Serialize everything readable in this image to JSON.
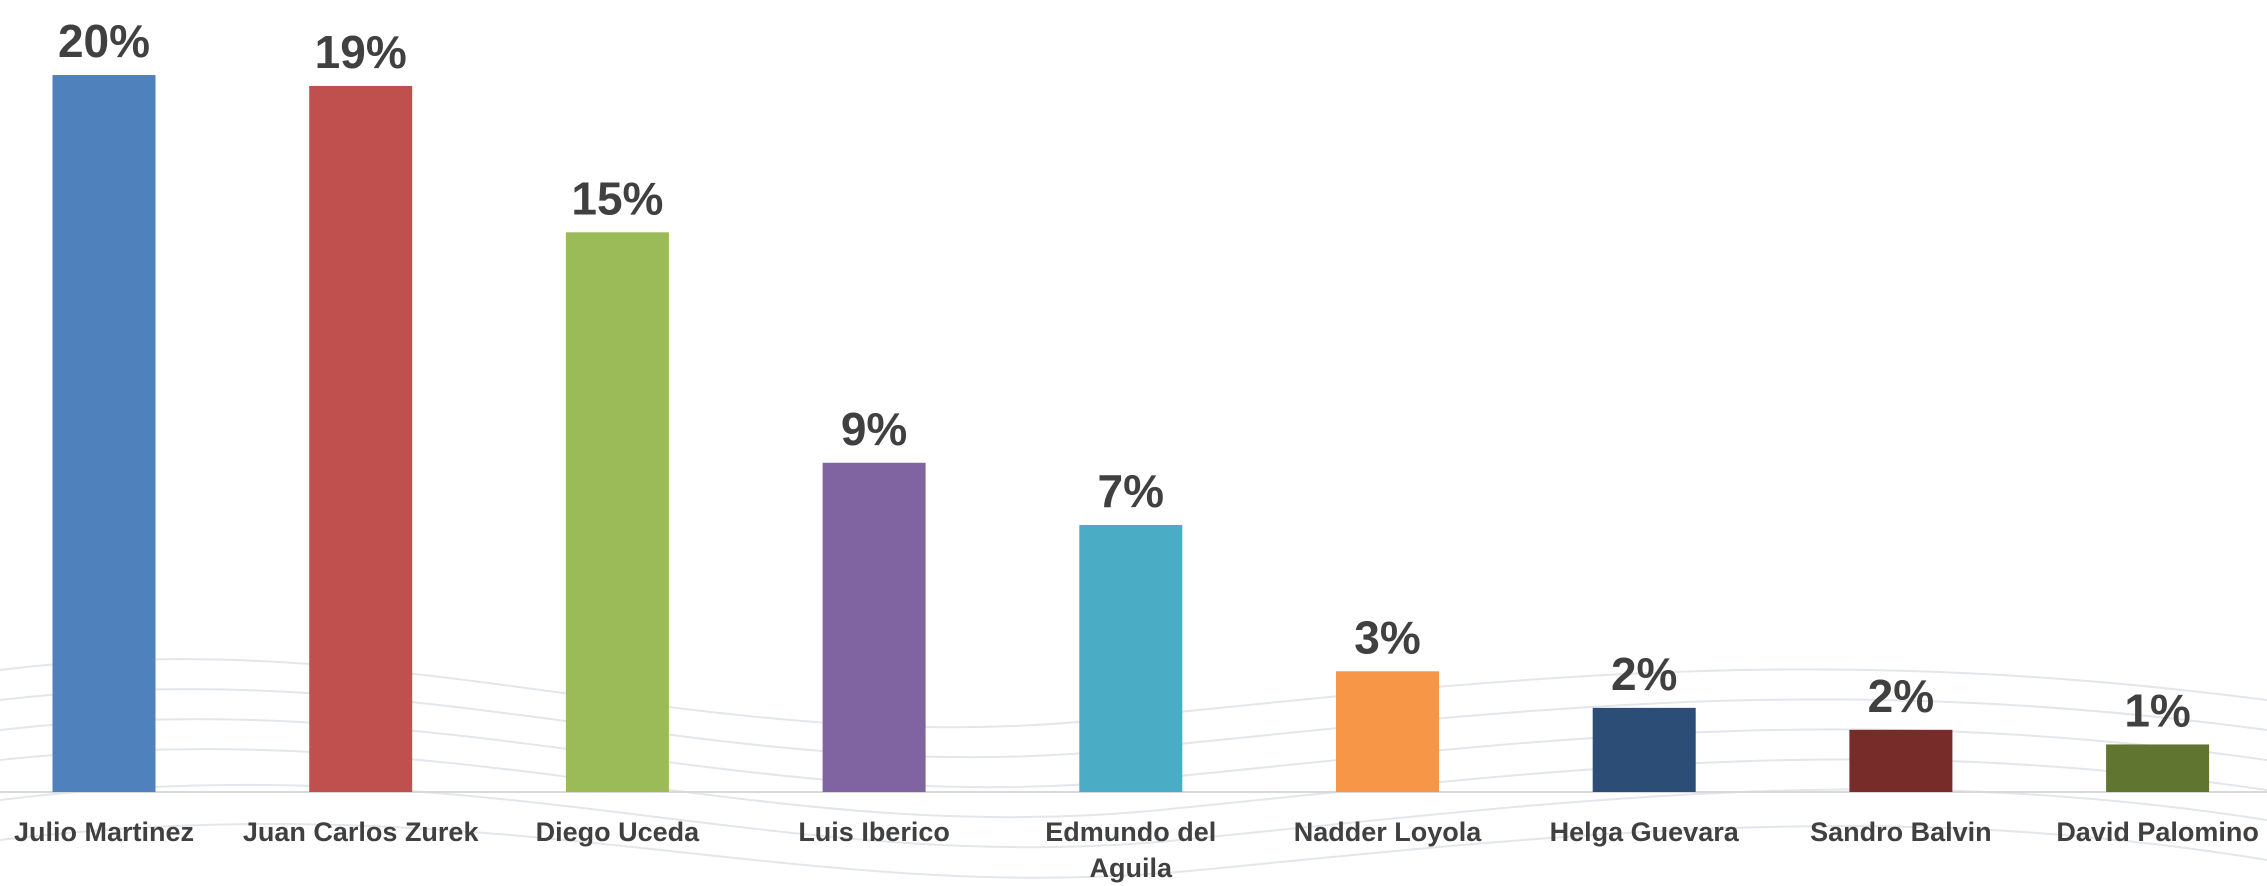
{
  "chart_data": {
    "type": "bar",
    "categories": [
      "Julio Martinez",
      "Juan Carlos Zurek",
      "Diego Uceda",
      "Luis Iberico",
      "Edmundo del Aguila",
      "Nadder Loyola",
      "Helga Guevara",
      "Sandro Balvin",
      "David Palomino"
    ],
    "values": [
      19.6,
      19.3,
      15.3,
      9.0,
      7.3,
      3.3,
      2.3,
      1.7,
      1.3
    ],
    "value_labels": [
      "20%",
      "19%",
      "15%",
      "9%",
      "7%",
      "3%",
      "2%",
      "2%",
      "1%"
    ],
    "colors": [
      "#4f81bd",
      "#c0504d",
      "#9bbb59",
      "#8064a2",
      "#4bacc6",
      "#f79646",
      "#2c4d75",
      "#772c2a",
      "#5f7530"
    ]
  }
}
